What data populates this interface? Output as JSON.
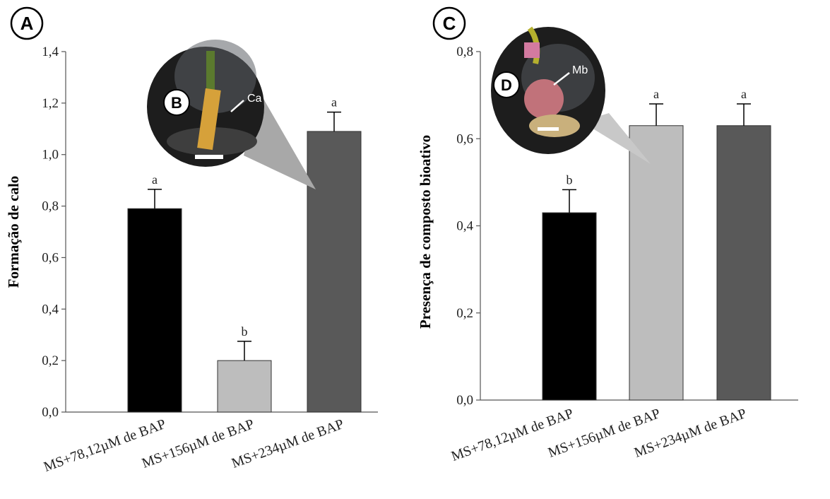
{
  "chart_data": [
    {
      "type": "bar",
      "panel_label": "A",
      "ylabel": "Formação de calo",
      "xlabel": "",
      "ylim": [
        0,
        1.4
      ],
      "yticks": [
        "0,0",
        "0,2",
        "0,4",
        "0,6",
        "0,8",
        "1,0",
        "1,2",
        "1,4"
      ],
      "categories": [
        "MS+78,12µM de BAP",
        "MS+156µM de BAP",
        "MS+234µM de BAP"
      ],
      "values": [
        0.79,
        0.2,
        1.09
      ],
      "errors": [
        0.075,
        0.075,
        0.075
      ],
      "letters": [
        "a",
        "b",
        "a"
      ],
      "colors": [
        "#000000",
        "#bdbdbd",
        "#595959"
      ],
      "grid": false,
      "inset": {
        "label": "B",
        "annotation": "Ca"
      }
    },
    {
      "type": "bar",
      "panel_label": "C",
      "ylabel": "Presença de composto bioativo",
      "xlabel": "",
      "ylim": [
        0,
        0.8
      ],
      "yticks": [
        "0,0",
        "0,2",
        "0,4",
        "0,6",
        "0,8"
      ],
      "categories": [
        "MS+78,12µM de BAP",
        "MS+156µM de BAP",
        "MS+234µM de BAP"
      ],
      "values": [
        0.43,
        0.63,
        0.63
      ],
      "errors": [
        0.053,
        0.05,
        0.05
      ],
      "letters": [
        "b",
        "a",
        "a"
      ],
      "colors": [
        "#000000",
        "#bdbdbd",
        "#595959"
      ],
      "grid": false,
      "inset": {
        "label": "D",
        "annotation": "Mb"
      }
    }
  ]
}
